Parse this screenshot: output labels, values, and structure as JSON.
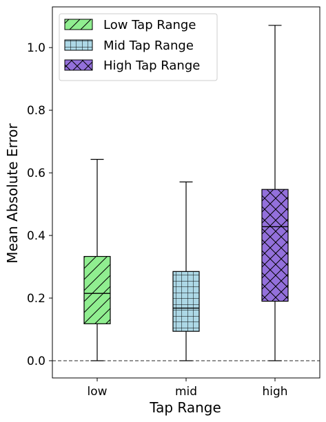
{
  "chart_data": {
    "type": "box",
    "xlabel": "Tap Range",
    "ylabel": "Mean Absolute Error",
    "ylim": [
      -0.055,
      1.13
    ],
    "yticks": [
      0.0,
      0.2,
      0.4,
      0.6,
      0.8,
      1.0
    ],
    "ytick_labels": [
      "0.0",
      "0.2",
      "0.4",
      "0.6",
      "0.8",
      "1.0"
    ],
    "categories": [
      "low",
      "mid",
      "high"
    ],
    "reference_line": {
      "y": 0.0,
      "style": "dashed"
    },
    "legend_position": "top-left",
    "series": [
      {
        "name": "Low Tap Range",
        "category": "low",
        "whisker_low": 0.0,
        "q1": 0.118,
        "median": 0.215,
        "q3": 0.333,
        "whisker_high": 0.643,
        "color": "#90ee90",
        "hatch": "diagonal"
      },
      {
        "name": "Mid Tap Range",
        "category": "mid",
        "whisker_low": 0.0,
        "q1": 0.094,
        "median": 0.168,
        "q3": 0.285,
        "whisker_high": 0.571,
        "color": "#add8e6",
        "hatch": "grid"
      },
      {
        "name": "High Tap Range",
        "category": "high",
        "whisker_low": 0.0,
        "q1": 0.19,
        "median": 0.428,
        "q3": 0.547,
        "whisker_high": 1.071,
        "color": "#9370db",
        "hatch": "crosshatch"
      }
    ]
  }
}
